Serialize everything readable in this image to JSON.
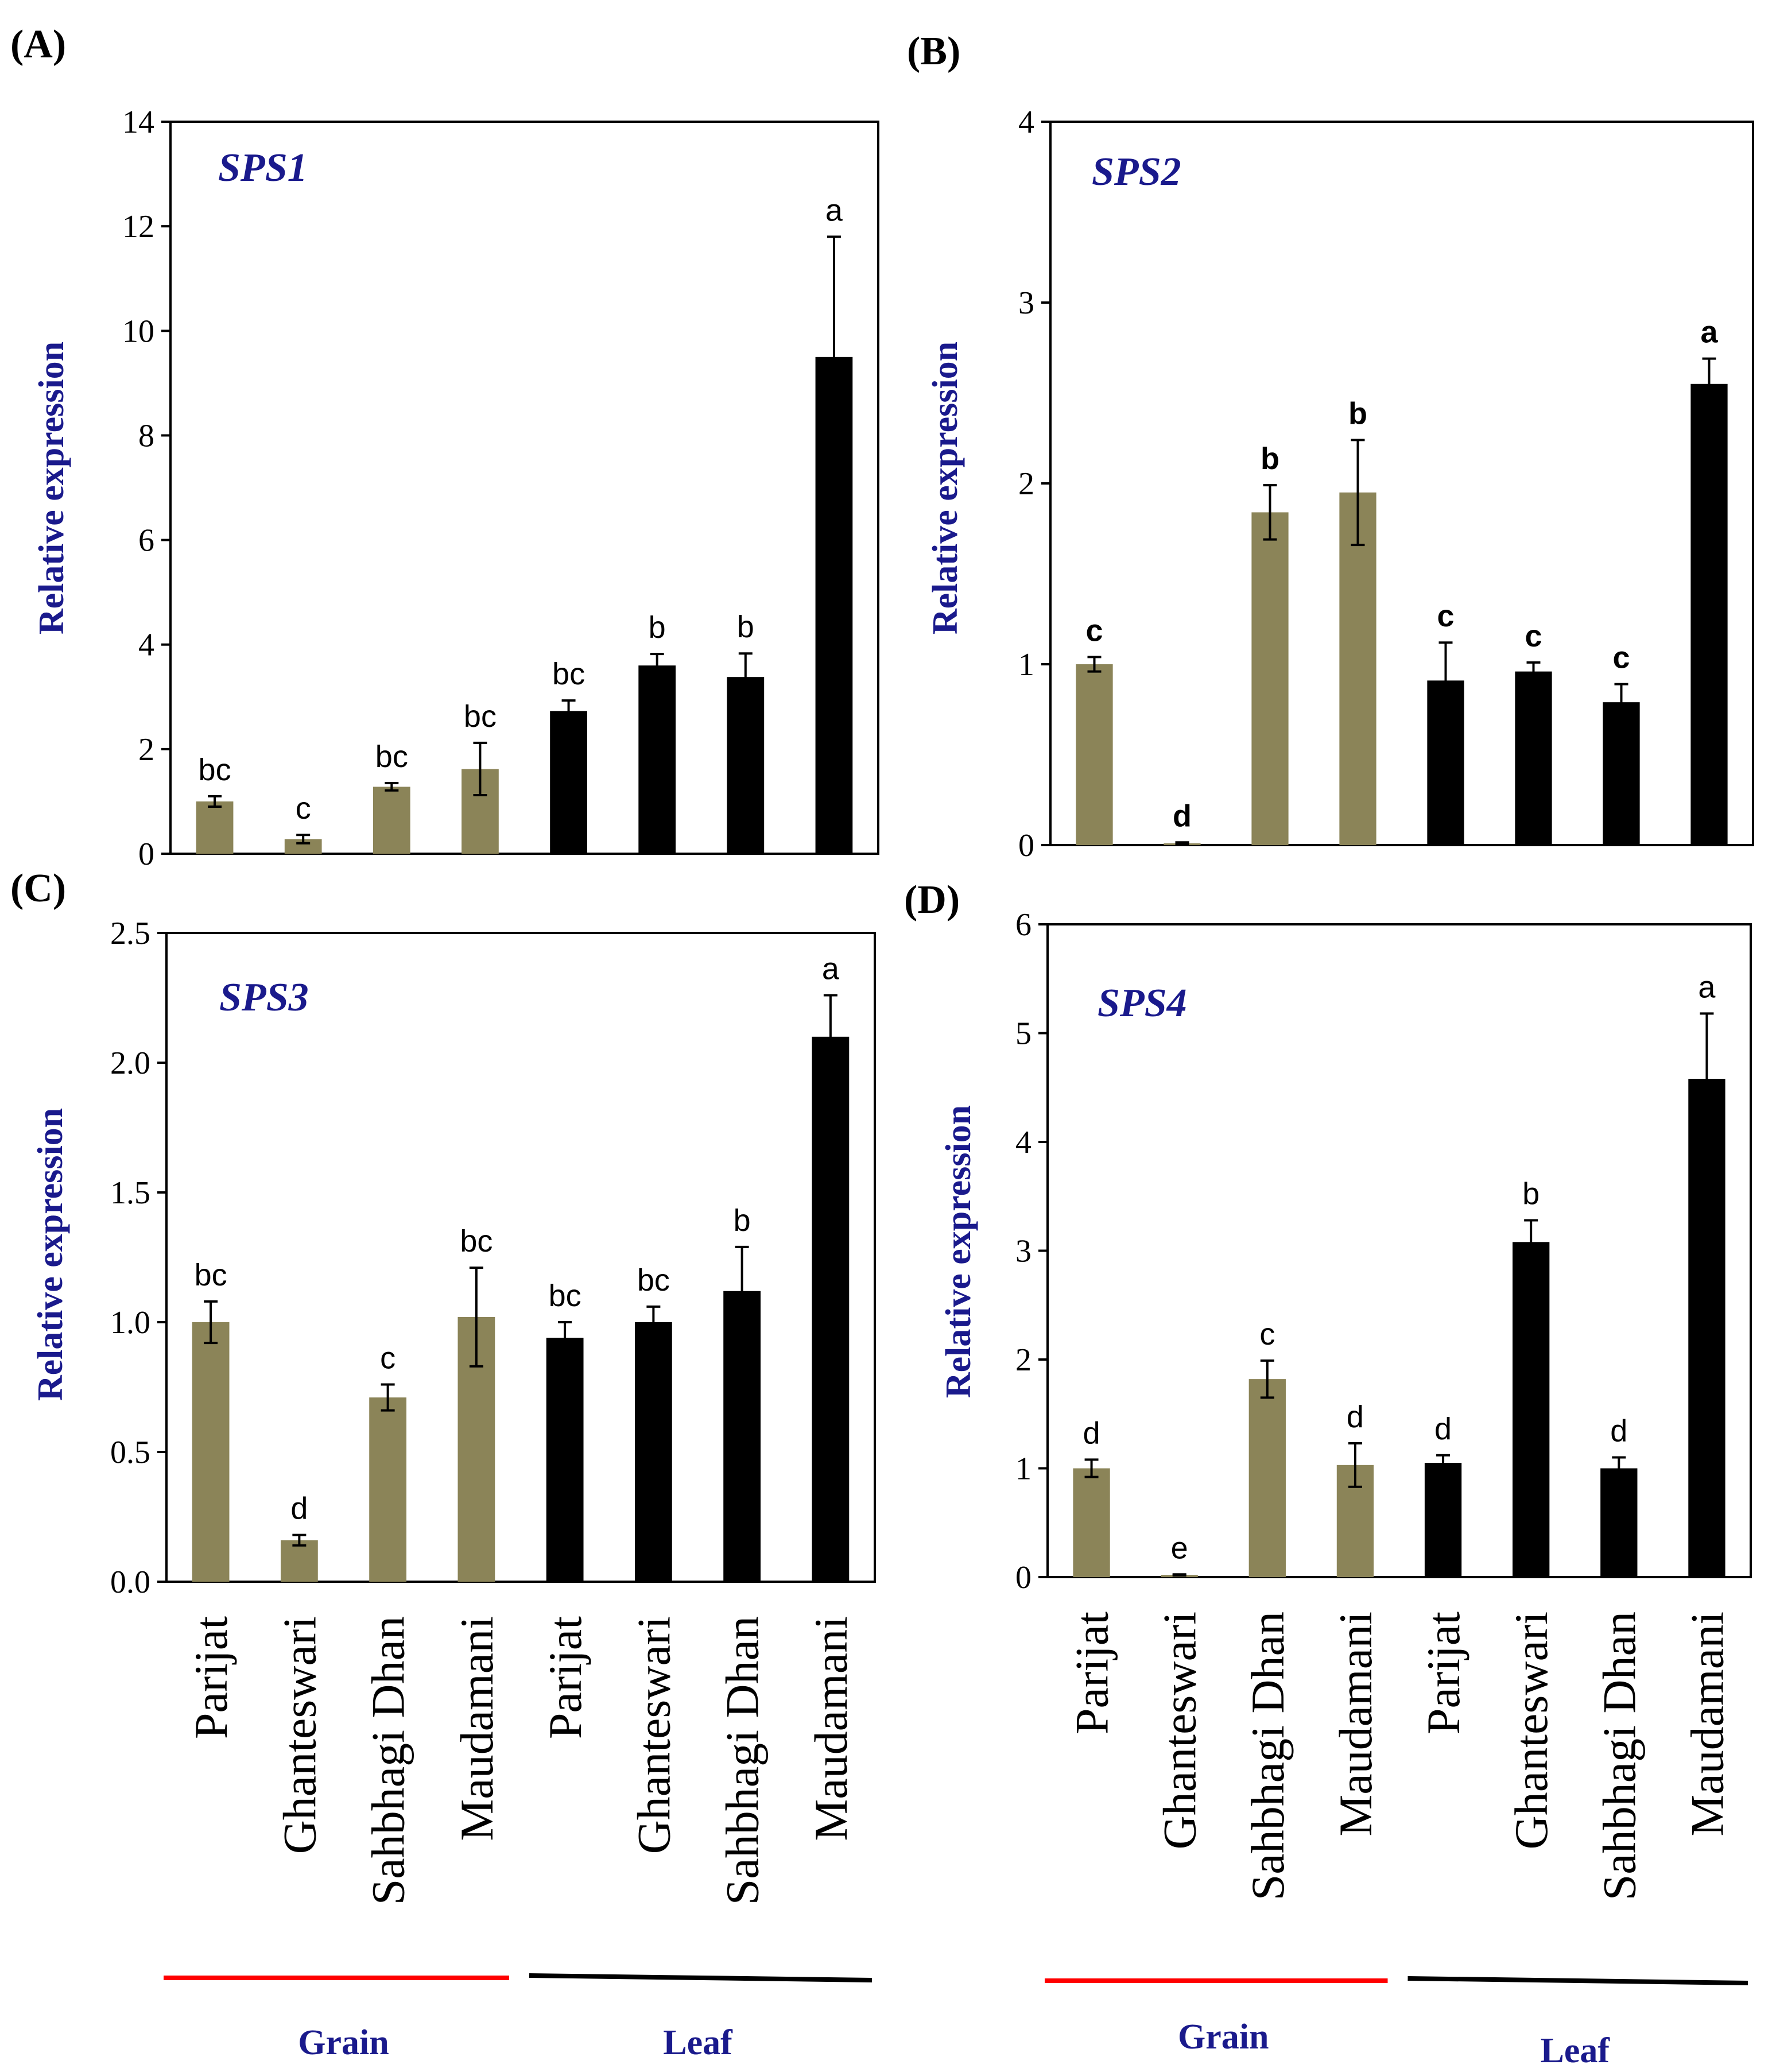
{
  "colors": {
    "grain": "#8b8458",
    "leaf": "#000000",
    "grain_line": "#ff0000",
    "leaf_line": "#000000",
    "text_blue": "#1a1a8c"
  },
  "categories": [
    "Parijat",
    "Ghanteswari",
    "Sahbhagi Dhan",
    "Maudamani",
    "Parijat",
    "Ghanteswari",
    "Sahbhagi Dhan",
    "Maudamani"
  ],
  "groups": [
    "Grain",
    "Grain",
    "Grain",
    "Grain",
    "Leaf",
    "Leaf",
    "Leaf",
    "Leaf"
  ],
  "group_labels": {
    "grain": "Grain",
    "leaf": "Leaf"
  },
  "chart_data": [
    {
      "type": "bar",
      "panel": "(A)",
      "title": "SPS1",
      "ylabel": "Relative expression",
      "ylim": [
        0,
        14
      ],
      "yticks": [
        "0",
        "2",
        "4",
        "6",
        "8",
        "10",
        "12",
        "14"
      ],
      "ytick_values": [
        0,
        2,
        4,
        6,
        8,
        10,
        12,
        14
      ],
      "values": [
        1.0,
        0.28,
        1.28,
        1.62,
        2.73,
        3.6,
        3.38,
        9.5
      ],
      "errors": [
        0.1,
        0.08,
        0.07,
        0.5,
        0.2,
        0.22,
        0.45,
        2.3
      ],
      "letters": [
        "bc",
        "c",
        "bc",
        "bc",
        "bc",
        "b",
        "b",
        "a"
      ],
      "letters_bold": false
    },
    {
      "type": "bar",
      "panel": "(B)",
      "title": "SPS2",
      "ylabel": "Relative expression",
      "ylim": [
        0,
        4
      ],
      "yticks": [
        "0",
        "1",
        "2",
        "3",
        "4"
      ],
      "ytick_values": [
        0,
        1,
        2,
        3,
        4
      ],
      "values": [
        1.0,
        0.01,
        1.84,
        1.95,
        0.91,
        0.96,
        0.79,
        2.55
      ],
      "errors": [
        0.04,
        0.005,
        0.15,
        0.29,
        0.21,
        0.05,
        0.1,
        0.14
      ],
      "letters": [
        "c",
        "d",
        "b",
        "b",
        "c",
        "c",
        "c",
        "a"
      ],
      "letters_bold": true
    },
    {
      "type": "bar",
      "panel": "(C)",
      "title": "SPS3",
      "ylabel": "Relative expression",
      "ylim": [
        0,
        2.5
      ],
      "yticks": [
        "0.0",
        "0.5",
        "1.0",
        "1.5",
        "2.0",
        "2.5"
      ],
      "ytick_values": [
        0,
        0.5,
        1.0,
        1.5,
        2.0,
        2.5
      ],
      "values": [
        1.0,
        0.16,
        0.71,
        1.02,
        0.94,
        1.0,
        1.12,
        2.1
      ],
      "errors": [
        0.08,
        0.02,
        0.05,
        0.19,
        0.06,
        0.06,
        0.17,
        0.16
      ],
      "letters": [
        "bc",
        "d",
        "c",
        "bc",
        "bc",
        "bc",
        "b",
        "a"
      ],
      "letters_bold": false
    },
    {
      "type": "bar",
      "panel": "(D)",
      "title": "SPS4",
      "ylabel": "Relative expression",
      "ylim": [
        0,
        6
      ],
      "yticks": [
        "0",
        "1",
        "2",
        "3",
        "4",
        "5",
        "6"
      ],
      "ytick_values": [
        0,
        1,
        2,
        3,
        4,
        5,
        6
      ],
      "values": [
        1.0,
        0.02,
        1.82,
        1.03,
        1.05,
        3.08,
        1.0,
        4.58
      ],
      "errors": [
        0.08,
        0.005,
        0.17,
        0.2,
        0.07,
        0.2,
        0.1,
        0.6
      ],
      "letters": [
        "d",
        "e",
        "c",
        "d",
        "d",
        "b",
        "d",
        "a"
      ],
      "letters_bold": false
    }
  ]
}
